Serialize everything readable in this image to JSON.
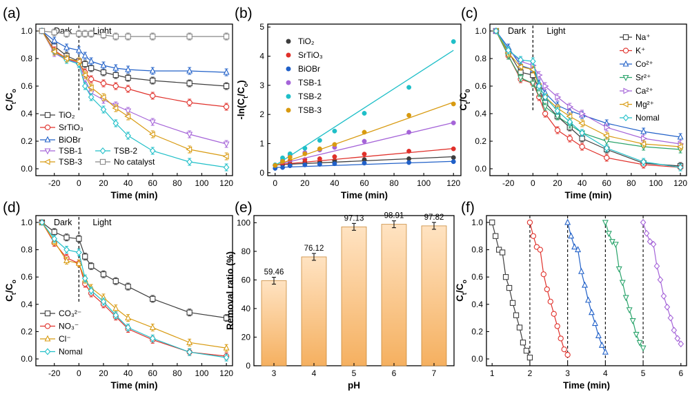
{
  "colors": {
    "TiO2": "#3d3d3d",
    "SrTiO3": "#e0302a",
    "BiOBr": "#2060c8",
    "TSB-1": "#a564d8",
    "TSB-2": "#1fbfc8",
    "TSB-3": "#d89a10",
    "No catalyst": "#888888",
    "Na": "#3d3d3d",
    "K": "#e0302a",
    "Co": "#2060c8",
    "Sr": "#29a36a",
    "Ca": "#a564d8",
    "Mg": "#d89a10",
    "Nomal": "#1fbfc8",
    "CO3": "#3d3d3d",
    "NO3": "#e0302a",
    "Cl": "#d89a10",
    "bar": "#f5b060"
  },
  "chart_data": [
    {
      "panel": "(a)",
      "type": "line",
      "xlabel": "Time (min)",
      "ylabel": "Ct/Co",
      "xlim": [
        -35,
        125
      ],
      "ylim": [
        -0.05,
        1.05
      ],
      "xticks": [
        -20,
        0,
        20,
        40,
        60,
        80,
        100,
        120
      ],
      "yticks": [
        0.0,
        0.2,
        0.4,
        0.6,
        0.8,
        1.0
      ],
      "annotations": {
        "dark": "Dark",
        "light": "Light"
      },
      "x": [
        -30,
        -20,
        -10,
        0,
        5,
        10,
        20,
        30,
        40,
        60,
        90,
        120
      ],
      "series": [
        {
          "name": "TiO2",
          "display": "TiO₂",
          "marker": "square",
          "values": [
            1.0,
            0.89,
            0.82,
            0.78,
            0.76,
            0.73,
            0.7,
            0.68,
            0.66,
            0.64,
            0.62,
            0.6
          ]
        },
        {
          "name": "SrTiO3",
          "display": "SrTiO₃",
          "marker": "circle",
          "values": [
            1.0,
            0.86,
            0.8,
            0.77,
            0.7,
            0.65,
            0.62,
            0.6,
            0.58,
            0.53,
            0.48,
            0.45
          ]
        },
        {
          "name": "BiOBr",
          "display": "BiOBr",
          "marker": "triangle",
          "values": [
            1.0,
            0.93,
            0.88,
            0.86,
            0.82,
            0.78,
            0.75,
            0.73,
            0.72,
            0.71,
            0.71,
            0.7
          ]
        },
        {
          "name": "TSB-1",
          "display": "TSB-1",
          "marker": "tri-down",
          "values": [
            1.0,
            0.84,
            0.79,
            0.77,
            0.65,
            0.55,
            0.5,
            0.46,
            0.42,
            0.34,
            0.25,
            0.18
          ]
        },
        {
          "name": "TSB-2",
          "display": "TSB-2",
          "marker": "diamond",
          "values": [
            1.0,
            0.85,
            0.79,
            0.76,
            0.6,
            0.52,
            0.43,
            0.33,
            0.24,
            0.13,
            0.05,
            0.01
          ]
        },
        {
          "name": "TSB-3",
          "display": "TSB-3",
          "marker": "tri-left",
          "values": [
            1.0,
            0.85,
            0.8,
            0.78,
            0.68,
            0.59,
            0.52,
            0.44,
            0.38,
            0.25,
            0.14,
            0.09
          ]
        },
        {
          "name": "No catalyst",
          "display": "No catalyst",
          "marker": "square",
          "values": [
            1.0,
            0.99,
            0.98,
            0.98,
            0.98,
            0.98,
            0.97,
            0.96,
            0.96,
            0.96,
            0.96,
            0.96
          ]
        }
      ]
    },
    {
      "panel": "(b)",
      "type": "scatter",
      "xlabel": "Time (min)",
      "ylabel": "-ln(Ct/Co)",
      "xlim": [
        -5,
        125
      ],
      "ylim": [
        -0.1,
        5.1
      ],
      "xticks": [
        0,
        20,
        40,
        60,
        80,
        100,
        120
      ],
      "yticks": [
        0,
        1,
        2,
        3,
        4,
        5
      ],
      "x": [
        0,
        5,
        10,
        20,
        30,
        40,
        60,
        90,
        120
      ],
      "series": [
        {
          "name": "TiO2",
          "display": "TiO₂",
          "values": [
            0.25,
            0.28,
            0.31,
            0.36,
            0.39,
            0.42,
            0.45,
            0.48,
            0.52
          ],
          "fit": [
            0.27,
            0.55
          ]
        },
        {
          "name": "SrTiO3",
          "display": "SrTiO₃",
          "values": [
            0.26,
            0.33,
            0.41,
            0.45,
            0.48,
            0.55,
            0.64,
            0.74,
            0.82
          ],
          "fit": [
            0.27,
            0.83
          ]
        },
        {
          "name": "BiOBr",
          "display": "BiOBr",
          "values": [
            0.15,
            0.18,
            0.24,
            0.27,
            0.29,
            0.31,
            0.33,
            0.35,
            0.38
          ],
          "fit": [
            0.18,
            0.39
          ]
        },
        {
          "name": "TSB-1",
          "display": "TSB-1",
          "values": [
            0.26,
            0.43,
            0.6,
            0.69,
            0.78,
            0.87,
            1.08,
            1.39,
            1.71
          ],
          "fit": [
            0.26,
            1.72
          ]
        },
        {
          "name": "TSB-2",
          "display": "TSB-2",
          "values": [
            0.27,
            0.51,
            0.65,
            0.84,
            1.11,
            1.43,
            2.04,
            2.93,
            4.5
          ],
          "fit": [
            0.25,
            4.2
          ]
        },
        {
          "name": "TSB-3",
          "display": "TSB-3",
          "values": [
            0.25,
            0.39,
            0.53,
            0.65,
            0.82,
            0.97,
            1.39,
            1.97,
            2.36
          ],
          "fit": [
            0.25,
            2.42
          ]
        }
      ]
    },
    {
      "panel": "(c)",
      "type": "line",
      "xlabel": "Time (min)",
      "ylabel": "Ct/C0",
      "xlim": [
        -35,
        125
      ],
      "ylim": [
        -0.05,
        1.05
      ],
      "xticks": [
        -20,
        0,
        20,
        40,
        60,
        80,
        100,
        120
      ],
      "yticks": [
        0.0,
        0.2,
        0.4,
        0.6,
        0.8,
        1.0
      ],
      "annotations": {
        "dark": "Dark",
        "light": "Light"
      },
      "x": [
        -30,
        -20,
        -10,
        0,
        5,
        10,
        20,
        30,
        40,
        60,
        90,
        120
      ],
      "series": [
        {
          "name": "Na",
          "display": "Na⁺",
          "marker": "square",
          "values": [
            1.0,
            0.85,
            0.7,
            0.68,
            0.58,
            0.48,
            0.38,
            0.3,
            0.22,
            0.14,
            0.04,
            0.02
          ]
        },
        {
          "name": "K",
          "display": "K⁺",
          "marker": "circle",
          "values": [
            1.0,
            0.82,
            0.65,
            0.62,
            0.52,
            0.4,
            0.28,
            0.22,
            0.16,
            0.08,
            0.03,
            0.01
          ]
        },
        {
          "name": "Co",
          "display": "Co²⁺",
          "marker": "triangle",
          "values": [
            1.0,
            0.88,
            0.75,
            0.72,
            0.62,
            0.55,
            0.46,
            0.42,
            0.39,
            0.33,
            0.27,
            0.23
          ]
        },
        {
          "name": "Sr",
          "display": "Sr²⁺",
          "marker": "tri-down",
          "values": [
            1.0,
            0.82,
            0.66,
            0.62,
            0.55,
            0.45,
            0.38,
            0.32,
            0.26,
            0.2,
            0.16,
            0.14
          ]
        },
        {
          "name": "Ca",
          "display": "Ca²⁺",
          "marker": "tri-right",
          "values": [
            1.0,
            0.86,
            0.78,
            0.75,
            0.68,
            0.6,
            0.52,
            0.45,
            0.4,
            0.3,
            0.22,
            0.18
          ]
        },
        {
          "name": "Mg",
          "display": "Mg²⁺",
          "marker": "tri-left",
          "values": [
            1.0,
            0.84,
            0.74,
            0.72,
            0.6,
            0.52,
            0.44,
            0.38,
            0.33,
            0.24,
            0.18,
            0.16
          ]
        },
        {
          "name": "Nomal",
          "display": "Nomal",
          "marker": "diamond",
          "values": [
            1.0,
            0.86,
            0.79,
            0.78,
            0.6,
            0.52,
            0.42,
            0.34,
            0.26,
            0.15,
            0.05,
            0.01
          ]
        }
      ]
    },
    {
      "panel": "(d)",
      "type": "line",
      "xlabel": "Time (min)",
      "ylabel": "Ct/Co",
      "xlim": [
        -35,
        125
      ],
      "ylim": [
        -0.05,
        1.05
      ],
      "xticks": [
        -20,
        0,
        20,
        40,
        60,
        80,
        100,
        120
      ],
      "yticks": [
        0.0,
        0.2,
        0.4,
        0.6,
        0.8,
        1.0
      ],
      "annotations": {
        "dark": "Dark",
        "light": "Light"
      },
      "x": [
        -30,
        -20,
        -10,
        0,
        5,
        10,
        20,
        30,
        40,
        60,
        90,
        120
      ],
      "series": [
        {
          "name": "CO3",
          "display": "CO₃²⁻",
          "marker": "square",
          "values": [
            1.0,
            0.93,
            0.89,
            0.88,
            0.75,
            0.68,
            0.62,
            0.57,
            0.53,
            0.44,
            0.34,
            0.3
          ]
        },
        {
          "name": "NO3",
          "display": "NO₃⁻",
          "marker": "circle",
          "values": [
            1.0,
            0.85,
            0.74,
            0.7,
            0.55,
            0.48,
            0.4,
            0.31,
            0.22,
            0.14,
            0.05,
            0.02
          ]
        },
        {
          "name": "Cl",
          "display": "Cl⁻",
          "marker": "triangle",
          "values": [
            1.0,
            0.86,
            0.72,
            0.7,
            0.58,
            0.52,
            0.45,
            0.37,
            0.3,
            0.23,
            0.12,
            0.08
          ]
        },
        {
          "name": "Nomal",
          "display": "Nomal",
          "marker": "diamond",
          "values": [
            1.0,
            0.88,
            0.8,
            0.78,
            0.59,
            0.5,
            0.42,
            0.32,
            0.23,
            0.15,
            0.05,
            0.01
          ]
        }
      ]
    },
    {
      "panel": "(e)",
      "type": "bar",
      "xlabel": "pH",
      "ylabel": "Removal ratio (%)",
      "ylim": [
        0,
        105
      ],
      "yticks": [
        0,
        20,
        40,
        60,
        80,
        100
      ],
      "categories": [
        "3",
        "4",
        "5",
        "6",
        "7"
      ],
      "values": [
        59.46,
        76.12,
        97.13,
        98.91,
        97.82
      ],
      "labels": [
        "59.46",
        "76.12",
        "97.13",
        "98.91",
        "97.82"
      ]
    },
    {
      "panel": "(f)",
      "type": "line",
      "xlabel": "Time (min)",
      "ylabel": "Ct/Co",
      "xlim": [
        0.85,
        6.15
      ],
      "ylim": [
        -0.05,
        1.05
      ],
      "xticks": [
        1,
        2,
        3,
        4,
        5,
        6
      ],
      "yticks": [
        0.0,
        0.2,
        0.4,
        0.6,
        0.8,
        1.0
      ],
      "dividers": [
        2,
        3,
        4,
        5
      ],
      "cycles": [
        {
          "color_key": "TiO2",
          "marker": "square",
          "x0": 1,
          "values": [
            1.0,
            0.9,
            0.8,
            0.78,
            0.6,
            0.52,
            0.41,
            0.32,
            0.23,
            0.12,
            0.06,
            0.01
          ]
        },
        {
          "color_key": "SrTiO3",
          "marker": "circle",
          "x0": 2,
          "values": [
            1.0,
            0.9,
            0.82,
            0.8,
            0.62,
            0.51,
            0.42,
            0.33,
            0.24,
            0.15,
            0.07,
            0.03
          ]
        },
        {
          "color_key": "BiOBr",
          "marker": "triangle",
          "x0": 3,
          "values": [
            1.0,
            0.9,
            0.82,
            0.8,
            0.64,
            0.54,
            0.43,
            0.34,
            0.26,
            0.17,
            0.1,
            0.05
          ]
        },
        {
          "color_key": "Sr",
          "marker": "tri-down",
          "x0": 4,
          "values": [
            1.0,
            0.92,
            0.86,
            0.84,
            0.66,
            0.56,
            0.45,
            0.36,
            0.28,
            0.18,
            0.12,
            0.08
          ]
        },
        {
          "color_key": "Ca",
          "marker": "diamond",
          "x0": 5,
          "values": [
            1.0,
            0.92,
            0.86,
            0.84,
            0.68,
            0.58,
            0.46,
            0.38,
            0.3,
            0.21,
            0.15,
            0.11
          ]
        }
      ]
    }
  ]
}
